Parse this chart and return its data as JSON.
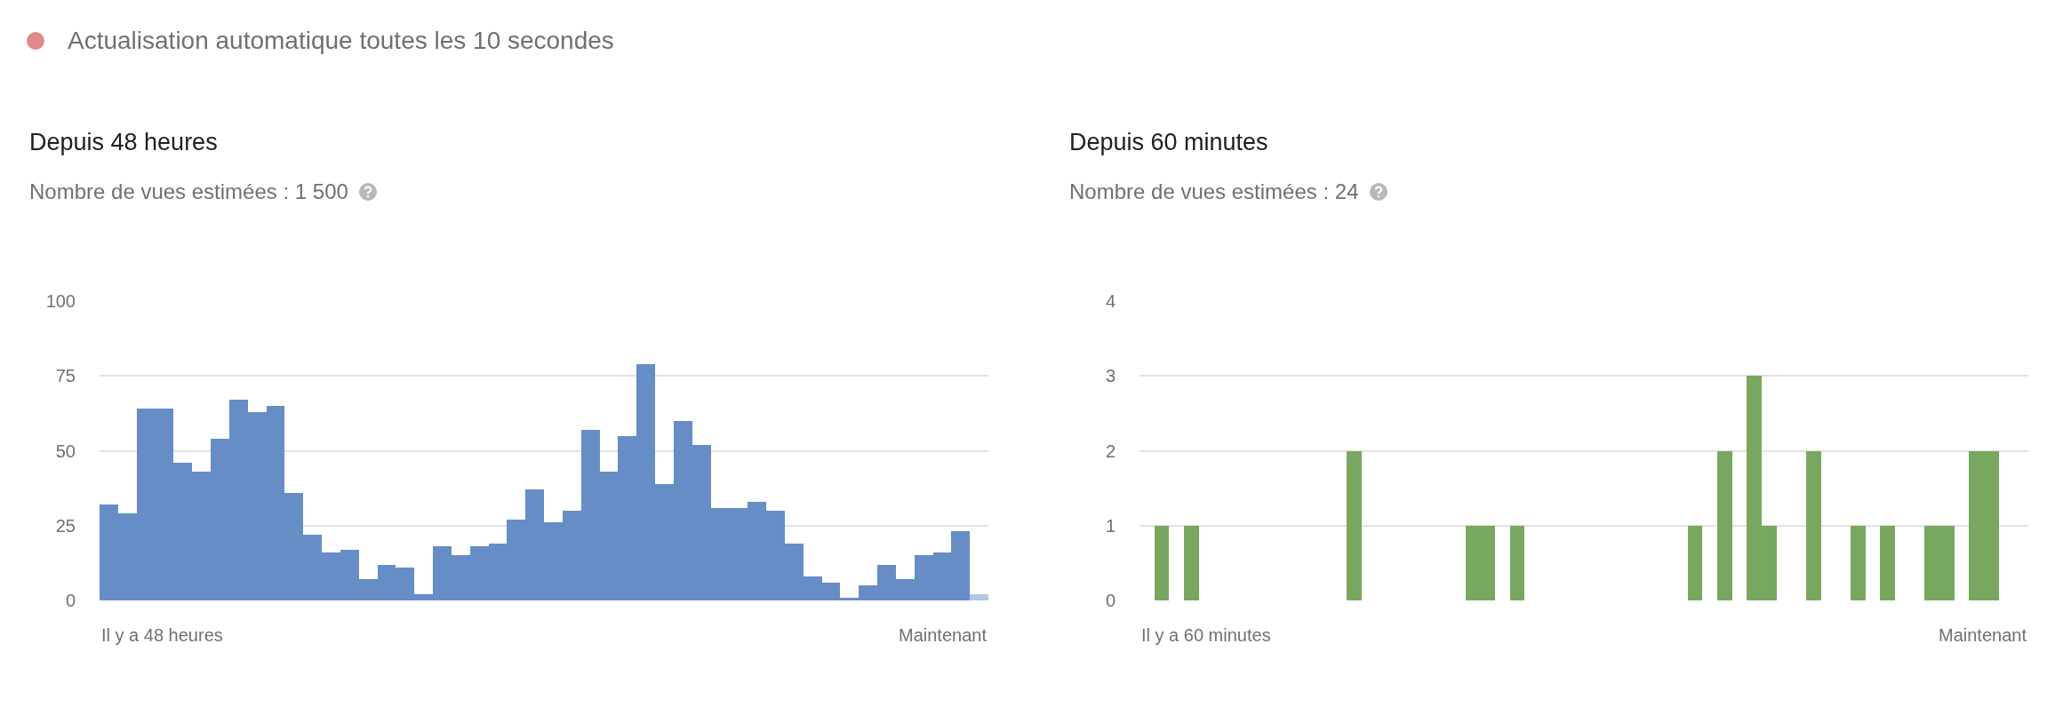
{
  "chart_data": [
    {
      "type": "other",
      "title": "Actualisation automatique toutes les 10 secondes"
    },
    {
      "type": "bar",
      "title": "Depuis 48 heures",
      "subtitle": "Nombre de vues estimées : 1 500",
      "categories": [
        null,
        null,
        null,
        null,
        null,
        null,
        null,
        null,
        null,
        null,
        null,
        null,
        null,
        null,
        null,
        null,
        null,
        null,
        null,
        null,
        null,
        null,
        null,
        null,
        null,
        null,
        null,
        null,
        null,
        null,
        null,
        null,
        null,
        null,
        null,
        null,
        null,
        null,
        null,
        null,
        null,
        null,
        null,
        null,
        null,
        null,
        null,
        null
      ],
      "values": [
        32,
        29,
        64,
        64,
        46,
        43,
        54,
        67,
        63,
        65,
        36,
        22,
        16,
        17,
        7,
        12,
        11,
        2,
        18,
        15,
        18,
        19,
        27,
        37,
        26,
        30,
        57,
        43,
        55,
        79,
        39,
        60,
        52,
        31,
        31,
        33,
        30,
        19,
        8,
        6,
        1,
        5,
        12,
        7,
        15,
        16,
        23,
        2
      ],
      "colors": [
        "#678dc6",
        "#678dc6",
        "#678dc6",
        "#678dc6",
        "#678dc6",
        "#678dc6",
        "#678dc6",
        "#678dc6",
        "#678dc6",
        "#678dc6",
        "#678dc6",
        "#678dc6",
        "#678dc6",
        "#678dc6",
        "#678dc6",
        "#678dc6",
        "#678dc6",
        "#678dc6",
        "#678dc6",
        "#678dc6",
        "#678dc6",
        "#678dc6",
        "#678dc6",
        "#678dc6",
        "#678dc6",
        "#678dc6",
        "#678dc6",
        "#678dc6",
        "#678dc6",
        "#678dc6",
        "#678dc6",
        "#678dc6",
        "#678dc6",
        "#678dc6",
        "#678dc6",
        "#678dc6",
        "#678dc6",
        "#678dc6",
        "#678dc6",
        "#678dc6",
        "#678dc6",
        "#678dc6",
        "#678dc6",
        "#678dc6",
        "#678dc6",
        "#678dc6",
        "#678dc6",
        "#b3c6e2"
      ],
      "ylim": [
        0,
        100
      ],
      "yticks": [
        0,
        25,
        50,
        75,
        100
      ],
      "grid": "y",
      "annotations": [
        "Il y a 48 heures",
        "Maintenant"
      ]
    },
    {
      "type": "bar",
      "title": "Depuis 60 minutes",
      "subtitle": "Nombre de vues estimées : 24",
      "categories": [
        null,
        null,
        null,
        null,
        null,
        null,
        null,
        null,
        null,
        null,
        null,
        null,
        null,
        null,
        null,
        null,
        null,
        null,
        null,
        null,
        null,
        null,
        null,
        null,
        null,
        null,
        null,
        null,
        null,
        null,
        null,
        null,
        null,
        null,
        null,
        null,
        null,
        null,
        null,
        null,
        null,
        null,
        null,
        null,
        null,
        null,
        null,
        null,
        null,
        null,
        null,
        null,
        null,
        null,
        null,
        null,
        null,
        null,
        null,
        null
      ],
      "values": [
        0,
        1,
        0,
        1,
        0,
        0,
        0,
        0,
        0,
        0,
        0,
        0,
        0,
        0,
        2,
        0,
        0,
        0,
        0,
        0,
        0,
        0,
        1,
        1,
        0,
        1,
        0,
        0,
        0,
        0,
        0,
        0,
        0,
        0,
        0,
        0,
        0,
        1,
        0,
        2,
        0,
        3,
        1,
        0,
        0,
        2,
        0,
        0,
        1,
        0,
        1,
        0,
        0,
        1,
        1,
        0,
        2,
        2,
        0,
        0
      ],
      "color": "#78a85f",
      "ylim": [
        0,
        4
      ],
      "yticks": [
        0,
        1,
        2,
        3,
        4
      ],
      "grid": "y",
      "annotations": [
        "Il y a 60 minutes",
        "Maintenant"
      ]
    }
  ]
}
